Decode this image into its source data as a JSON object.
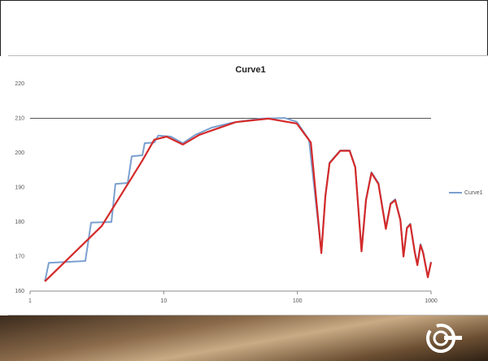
{
  "chart_data": {
    "type": "line",
    "title": "Curve1",
    "xscale": "log",
    "xlim": [
      1,
      1000
    ],
    "xticks": [
      1,
      10,
      100,
      1000
    ],
    "ylim": [
      160,
      220
    ],
    "yticks": [
      160,
      170,
      180,
      190,
      200,
      210,
      220
    ],
    "reference_line": 210,
    "legend": "right",
    "series": [
      {
        "name": "Curve1",
        "color": "#7ba0cf",
        "x": [
          1.29,
          1.38,
          2.59,
          2.86,
          4.06,
          4.35,
          5.37,
          5.76,
          6.92,
          7.2,
          8.5,
          9.1,
          11.3,
          13.9,
          17.2,
          22.8,
          32.2,
          52.7,
          80.4,
          99,
          122,
          151,
          162,
          174,
          209,
          246,
          271,
          302,
          326,
          358,
          404,
          459,
          498,
          539,
          590,
          622,
          660,
          700,
          757,
          790,
          833,
          873,
          946,
          1000
        ],
        "values": [
          162.8,
          168.2,
          168.7,
          179.8,
          180,
          191,
          191.3,
          199,
          199.3,
          202.8,
          203,
          205,
          204.7,
          202.8,
          205.2,
          207.3,
          208.7,
          209.9,
          210.1,
          209,
          203.8,
          171.3,
          187.8,
          197.2,
          200.7,
          200.7,
          196,
          171.8,
          186.6,
          194.4,
          191.3,
          178.4,
          185.4,
          186.6,
          180.7,
          170.1,
          178.4,
          179.5,
          171.3,
          167.8,
          173.6,
          171.3,
          164.2,
          168.5
        ]
      },
      {
        "color": "#d42a2a",
        "x": [
          1.29,
          3.43,
          6.92,
          8.5,
          10.5,
          13.9,
          18.4,
          34.6,
          60.8,
          99,
          126,
          151,
          162,
          174,
          209,
          246,
          271,
          302,
          326,
          358,
          404,
          459,
          498,
          539,
          590,
          622,
          660,
          700,
          757,
          790,
          833,
          873,
          946,
          1000
        ],
        "values": [
          162.8,
          178.8,
          197.8,
          203.8,
          204.7,
          202.4,
          205.2,
          208.9,
          209.9,
          208.5,
          203,
          171,
          187.5,
          197,
          200.6,
          200.6,
          195.8,
          171.5,
          186.3,
          194.2,
          191,
          178,
          185.2,
          186.3,
          180.5,
          170,
          178.2,
          179.3,
          171,
          167.5,
          173.3,
          171,
          164,
          168.3
        ]
      }
    ]
  }
}
